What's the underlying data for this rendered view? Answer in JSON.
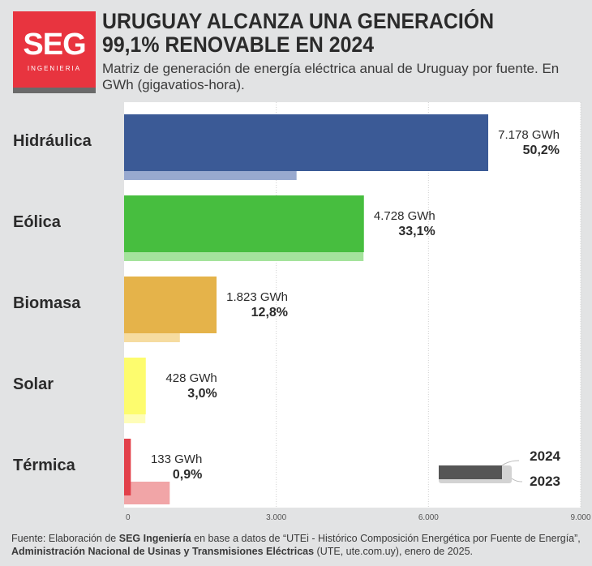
{
  "logo": {
    "text": "SEG",
    "sub": "INGENIERIA"
  },
  "title": "URUGUAY ALCANZA UNA GENERACIÓN 99,1% RENOVABLE EN 2024",
  "subtitle": "Matriz de generación de energía eléctrica anual de Uruguay por fuente. En GWh (gigavatios-hora).",
  "legend": {
    "current": "2024",
    "previous": "2023"
  },
  "footer": {
    "p1": "Fuente: Elaboración de ",
    "b1": "SEG Ingeniería",
    "p2": " en base a datos de “UTEi - Histórico Composición Energética por Fuente de Energía”, ",
    "b2": "Administración Nacional de Usinas y Transmisiones Eléctricas",
    "p3": " (UTE, ute.com.uy), enero de 2025."
  },
  "chart_data": {
    "type": "bar",
    "orientation": "horizontal",
    "categories": [
      "Hidráulica",
      "Eólica",
      "Biomasa",
      "Solar",
      "Térmica"
    ],
    "series": [
      {
        "name": "2024",
        "values": [
          7178,
          4728,
          1823,
          428,
          133
        ]
      },
      {
        "name": "2023",
        "values": [
          3400,
          4720,
          1100,
          420,
          900
        ]
      }
    ],
    "value_labels": [
      "7.178 GWh",
      "4.728 GWh",
      "1.823 GWh",
      "428 GWh",
      "133 GWh"
    ],
    "share_labels": [
      "50,2%",
      "33,1%",
      "12,8%",
      "3,0%",
      "0,9%"
    ],
    "xlim": [
      0,
      9000
    ],
    "xticks": [
      0,
      3000,
      6000,
      9000
    ],
    "xtick_labels": [
      "0",
      "3.000",
      "6.000",
      "9.000"
    ],
    "colors_2024": [
      "#3b5a96",
      "#47be3f",
      "#e5b34a",
      "#fdfc6e",
      "#e2404a"
    ],
    "colors_2023": [
      "#98a9cf",
      "#a4e39c",
      "#f6dca0",
      "#fefdb8",
      "#f1a5a7"
    ],
    "grid": true,
    "legend_position": "bottom-right"
  }
}
